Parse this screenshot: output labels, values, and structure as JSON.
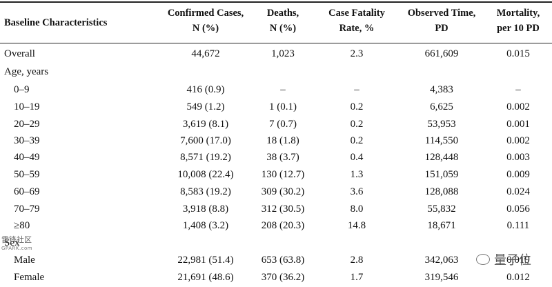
{
  "columns": [
    {
      "line1": "Baseline Characteristics",
      "line2": ""
    },
    {
      "line1": "Confirmed Cases,",
      "line2": "N (%)"
    },
    {
      "line1": "Deaths,",
      "line2": "N (%)"
    },
    {
      "line1": "Case Fatality",
      "line2": "Rate, %"
    },
    {
      "line1": "Observed Time,",
      "line2": "PD"
    },
    {
      "line1": "Mortality,",
      "line2": "per 10 PD"
    }
  ],
  "rows": [
    {
      "label": "Overall",
      "cases": "44,672",
      "deaths": "1,023",
      "cfr": "2.3",
      "pd": "661,609",
      "mortality": "0.015"
    },
    {
      "label": "Age, years",
      "cases": "",
      "deaths": "",
      "cfr": "",
      "pd": "",
      "mortality": ""
    },
    {
      "label": "0–9",
      "cases": "416 (0.9)",
      "deaths": "–",
      "cfr": "–",
      "pd": "4,383",
      "mortality": "–"
    },
    {
      "label": "10–19",
      "cases": "549 (1.2)",
      "deaths": "1 (0.1)",
      "cfr": "0.2",
      "pd": "6,625",
      "mortality": "0.002"
    },
    {
      "label": "20–29",
      "cases": "3,619 (8.1)",
      "deaths": "7 (0.7)",
      "cfr": "0.2",
      "pd": "53,953",
      "mortality": "0.001"
    },
    {
      "label": "30–39",
      "cases": "7,600 (17.0)",
      "deaths": "18 (1.8)",
      "cfr": "0.2",
      "pd": "114,550",
      "mortality": "0.002"
    },
    {
      "label": "40–49",
      "cases": "8,571 (19.2)",
      "deaths": "38 (3.7)",
      "cfr": "0.4",
      "pd": "128,448",
      "mortality": "0.003"
    },
    {
      "label": "50–59",
      "cases": "10,008 (22.4)",
      "deaths": "130 (12.7)",
      "cfr": "1.3",
      "pd": "151,059",
      "mortality": "0.009"
    },
    {
      "label": "60–69",
      "cases": "8,583 (19.2)",
      "deaths": "309 (30.2)",
      "cfr": "3.6",
      "pd": "128,088",
      "mortality": "0.024"
    },
    {
      "label": "70–79",
      "cases": "3,918 (8.8)",
      "deaths": "312 (30.5)",
      "cfr": "8.0",
      "pd": "55,832",
      "mortality": "0.056"
    },
    {
      "label": "≥80",
      "cases": "1,408 (3.2)",
      "deaths": "208 (20.3)",
      "cfr": "14.8",
      "pd": "18,671",
      "mortality": "0.111"
    },
    {
      "label": "Sex",
      "cases": "",
      "deaths": "",
      "cfr": "",
      "pd": "",
      "mortality": ""
    },
    {
      "label": "Male",
      "cases": "22,981 (51.4)",
      "deaths": "653 (63.8)",
      "cfr": "2.8",
      "pd": "342,063",
      "mortality": "0.019"
    },
    {
      "label": "Female",
      "cases": "21,691 (48.6)",
      "deaths": "370 (36.2)",
      "cfr": "1.7",
      "pd": "319,546",
      "mortality": "0.012"
    }
  ],
  "watermarks": {
    "left_main": "雷锋社区",
    "left_sub": "GPARK.com",
    "right": "量子位"
  }
}
